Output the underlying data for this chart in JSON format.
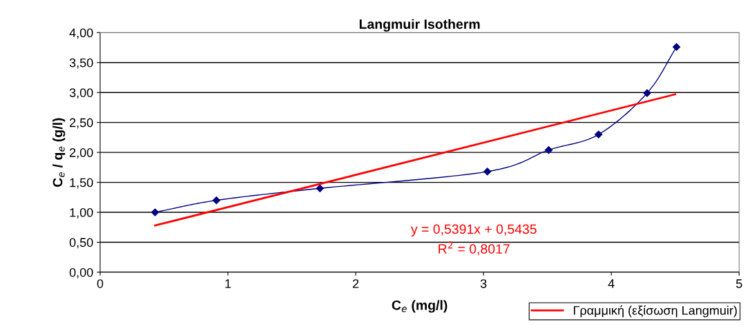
{
  "chart_data": {
    "type": "line",
    "title": "Langmuir Isotherm",
    "xlabel": "C$_{e}$ (mg/l)",
    "ylabel": "C$_{e}$ / q$_{e}$ (g/l)",
    "xlim": [
      0,
      5
    ],
    "xticks": [
      0,
      1,
      2,
      3,
      4,
      5
    ],
    "ylim": [
      0,
      4
    ],
    "yticks": [
      {
        "value": 0,
        "label": "0,00"
      },
      {
        "value": 0.5,
        "label": "0,50"
      },
      {
        "value": 1,
        "label": "1,00"
      },
      {
        "value": 1.5,
        "label": "1,50"
      },
      {
        "value": 2,
        "label": "2,00"
      },
      {
        "value": 2.5,
        "label": "2,50"
      },
      {
        "value": 3,
        "label": "3,00"
      },
      {
        "value": 3.5,
        "label": "3,50"
      },
      {
        "value": 4,
        "label": "4,00"
      }
    ],
    "grid": "y",
    "legend": "bottom right",
    "series": [
      {
        "color": "#000080",
        "marker": "diamond",
        "x": [
          0.43,
          0.91,
          1.72,
          3.03,
          3.51,
          3.9,
          4.28,
          4.51
        ],
        "values": [
          1.0,
          1.2,
          1.4,
          1.68,
          2.04,
          2.3,
          2.99,
          3.76
        ]
      },
      {
        "name": "Γραμμική (εξίσωση Langmuir)",
        "color": "#ff0000",
        "marker": "none",
        "x": [
          0.43,
          4.5
        ],
        "values": [
          0.78,
          2.97
        ]
      }
    ],
    "annotations": [
      "y = 0,5391x + 0,5435",
      "R$^{2}$ = 0,8017"
    ]
  }
}
